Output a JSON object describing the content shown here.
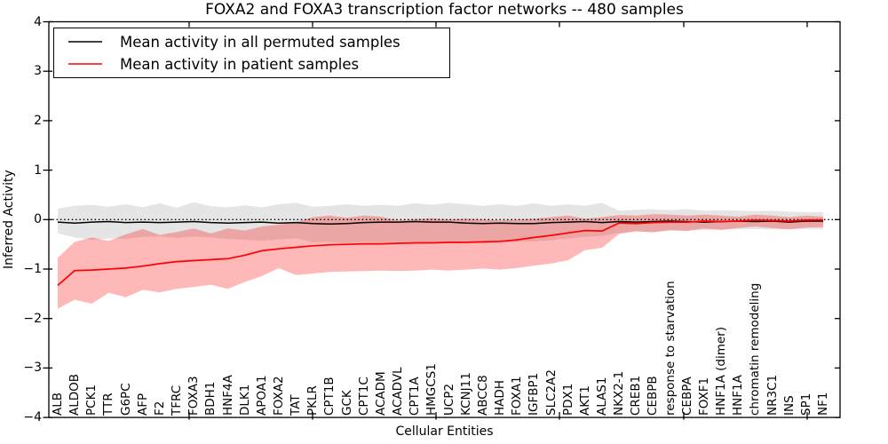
{
  "chart_data": {
    "type": "line",
    "title": "FOXA2 and FOXA3 transcription factor networks -- 480 samples",
    "xlabel": "Cellular Entities",
    "ylabel": "Inferred Activity",
    "ylim": [
      -4,
      4
    ],
    "ytick_labels": [
      "4",
      "3",
      "2",
      "1",
      "0",
      "−1",
      "−2",
      "−3",
      "−4"
    ],
    "ytick_values": [
      4,
      3,
      2,
      1,
      0,
      -1,
      -2,
      -3,
      -4
    ],
    "grid": false,
    "zero_line_style": "dotted",
    "legend_position": "upper left",
    "categories": [
      "ALB",
      "ALDOB",
      "PCK1",
      "TTR",
      "G6PC",
      "AFP",
      "F2",
      "TFRC",
      "FOXA3",
      "BDH1",
      "HNF4A",
      "DLK1",
      "APOA1",
      "FOXA2",
      "TAT",
      "PKLR",
      "CPT1B",
      "GCK",
      "CPT1C",
      "ACADM",
      "ACADVL",
      "CPT1A",
      "HMGCS1",
      "UCP2",
      "KCNJ11",
      "ABCC8",
      "HADH",
      "FOXA1",
      "IGFBP1",
      "SLC2A2",
      "PDX1",
      "AKT1",
      "ALAS1",
      "NKX2-1",
      "CREB1",
      "CEBPB",
      "response to starvation",
      "CEBPA",
      "FOXF1",
      "HNF1A (dimer)",
      "HNF1A",
      "chromatin remodeling",
      "NR3C1",
      "INS",
      "SP1",
      "NF1"
    ],
    "series": [
      {
        "name": "Mean activity in all permuted samples",
        "color": "#000000",
        "band_color": "rgba(0,0,0,0.10)",
        "values": [
          -0.05,
          -0.07,
          -0.05,
          -0.04,
          -0.06,
          -0.05,
          -0.06,
          -0.05,
          -0.04,
          -0.06,
          -0.07,
          -0.06,
          -0.05,
          -0.07,
          -0.06,
          -0.08,
          -0.09,
          -0.08,
          -0.06,
          -0.05,
          -0.05,
          -0.04,
          -0.05,
          -0.05,
          -0.07,
          -0.08,
          -0.07,
          -0.08,
          -0.08,
          -0.06,
          -0.05,
          -0.04,
          -0.06,
          -0.04,
          -0.05,
          -0.04,
          -0.03,
          -0.04,
          -0.05,
          -0.04,
          -0.03,
          -0.04,
          -0.03,
          -0.05,
          -0.03,
          -0.03
        ],
        "band_upper": [
          0.22,
          0.28,
          0.3,
          0.26,
          0.31,
          0.25,
          0.33,
          0.24,
          0.35,
          0.27,
          0.25,
          0.29,
          0.25,
          0.31,
          0.34,
          0.26,
          0.28,
          0.31,
          0.28,
          0.3,
          0.28,
          0.33,
          0.3,
          0.34,
          0.31,
          0.28,
          0.31,
          0.28,
          0.33,
          0.28,
          0.31,
          0.28,
          0.34,
          0.18,
          0.2,
          0.21,
          0.19,
          0.21,
          0.18,
          0.19,
          0.18,
          0.17,
          0.18,
          0.16,
          0.15,
          0.15
        ],
        "band_lower": [
          -0.28,
          -0.36,
          -0.41,
          -0.38,
          -0.39,
          -0.35,
          -0.34,
          -0.37,
          -0.34,
          -0.36,
          -0.39,
          -0.41,
          -0.43,
          -0.4,
          -0.38,
          -0.46,
          -0.45,
          -0.48,
          -0.45,
          -0.46,
          -0.45,
          -0.44,
          -0.46,
          -0.44,
          -0.45,
          -0.47,
          -0.48,
          -0.45,
          -0.44,
          -0.42,
          -0.38,
          -0.35,
          -0.33,
          -0.27,
          -0.25,
          -0.24,
          -0.23,
          -0.22,
          -0.21,
          -0.2,
          -0.2,
          -0.19,
          -0.2,
          -0.19,
          -0.19,
          -0.19
        ]
      },
      {
        "name": "Mean activity in patient samples",
        "color": "#ff0000",
        "band_color": "rgba(255,0,0,0.28)",
        "values": [
          -1.33,
          -1.03,
          -1.02,
          -1.0,
          -0.98,
          -0.94,
          -0.89,
          -0.85,
          -0.83,
          -0.81,
          -0.79,
          -0.72,
          -0.63,
          -0.59,
          -0.56,
          -0.53,
          -0.51,
          -0.5,
          -0.49,
          -0.49,
          -0.48,
          -0.47,
          -0.47,
          -0.46,
          -0.46,
          -0.45,
          -0.44,
          -0.41,
          -0.36,
          -0.32,
          -0.27,
          -0.22,
          -0.23,
          -0.07,
          -0.08,
          -0.06,
          -0.05,
          -0.05,
          -0.03,
          -0.04,
          -0.03,
          -0.01,
          -0.02,
          -0.03,
          -0.01,
          -0.01
        ],
        "band_upper": [
          -0.77,
          -0.45,
          -0.36,
          -0.43,
          -0.3,
          -0.19,
          -0.31,
          -0.25,
          -0.18,
          -0.28,
          -0.18,
          -0.22,
          -0.14,
          -0.1,
          -0.05,
          0.05,
          0.08,
          0.04,
          0.08,
          0.06,
          -0.02,
          0.01,
          0.03,
          0.0,
          0.02,
          0.0,
          -0.02,
          0.0,
          0.02,
          0.05,
          0.08,
          0.02,
          0.05,
          0.09,
          0.08,
          0.11,
          0.1,
          0.08,
          0.1,
          0.08,
          0.06,
          0.1,
          0.08,
          0.05,
          0.08,
          0.06
        ],
        "band_lower": [
          -1.8,
          -1.62,
          -1.7,
          -1.48,
          -1.57,
          -1.42,
          -1.47,
          -1.4,
          -1.36,
          -1.32,
          -1.4,
          -1.26,
          -1.14,
          -0.98,
          -1.12,
          -1.09,
          -1.06,
          -1.05,
          -1.04,
          -1.03,
          -1.04,
          -1.03,
          -1.01,
          -1.03,
          -1.01,
          -0.99,
          -1.01,
          -0.98,
          -0.93,
          -0.89,
          -0.82,
          -0.62,
          -0.57,
          -0.29,
          -0.23,
          -0.26,
          -0.21,
          -0.23,
          -0.18,
          -0.21,
          -0.17,
          -0.14,
          -0.17,
          -0.2,
          -0.16,
          -0.15
        ]
      }
    ]
  }
}
